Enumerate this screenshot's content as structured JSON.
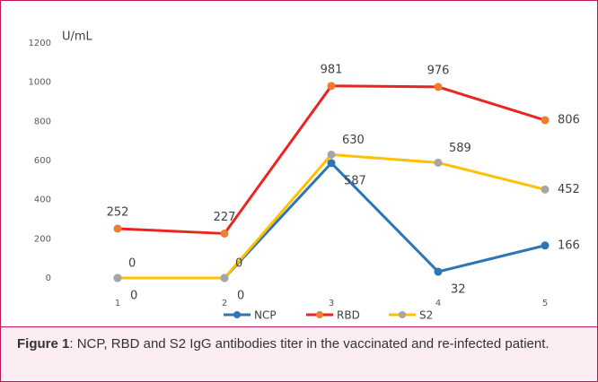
{
  "chart_data": {
    "type": "line",
    "y_axis_label": "U/mL",
    "categories": [
      "1",
      "2",
      "3",
      "4",
      "5"
    ],
    "ylim": [
      0,
      1200
    ],
    "yticks": [
      0,
      200,
      400,
      600,
      800,
      1000,
      1200
    ],
    "series": [
      {
        "name": "NCP",
        "color": "#2e75b6",
        "marker_color": "#2e75b6",
        "values": [
          0,
          0,
          587,
          32,
          166
        ]
      },
      {
        "name": "RBD",
        "color": "#e8261f",
        "marker_color": "#ed7d31",
        "values": [
          252,
          227,
          981,
          976,
          806
        ]
      },
      {
        "name": "S2",
        "color": "#ffc000",
        "marker_color": "#a5a5a5",
        "values": [
          0,
          0,
          630,
          589,
          452
        ]
      }
    ],
    "legend": "bottom",
    "caption": {
      "label": "Figure 1",
      "text": ": NCP, RBD and S2 IgG antibodies titer in the vaccinated and re-infected patient."
    }
  }
}
